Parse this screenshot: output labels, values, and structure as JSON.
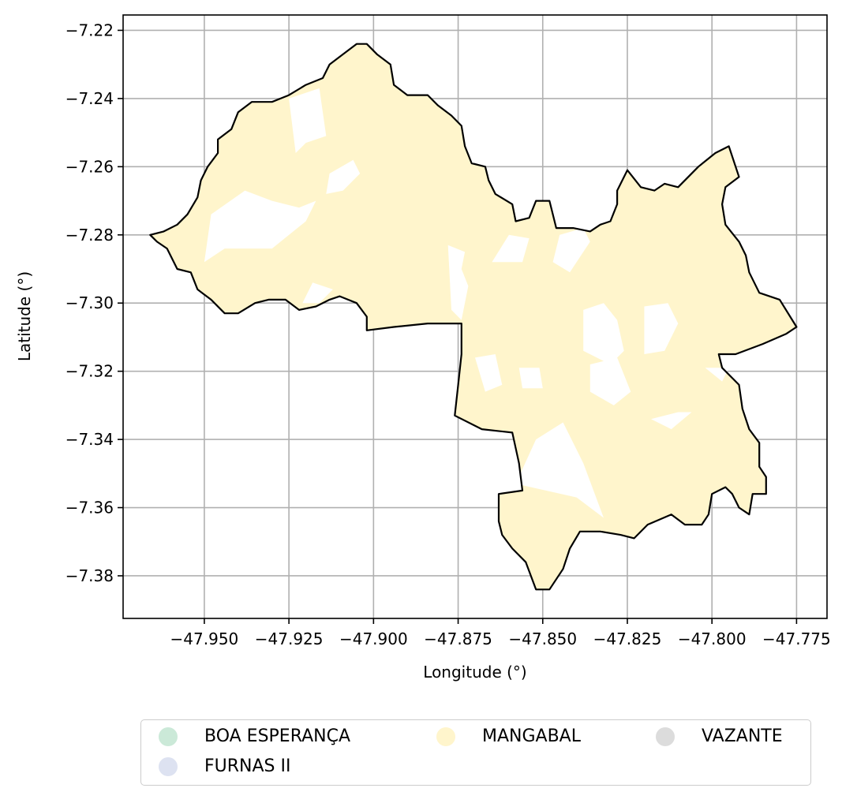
{
  "chart_data": {
    "type": "choropleth-map",
    "xlabel": "Longitude (°)",
    "ylabel": "Latitude (°)",
    "xlim": [
      -47.974,
      -47.766
    ],
    "ylim": [
      -7.3925,
      -7.2155
    ],
    "grid": true,
    "x_ticks": [
      -47.95,
      -47.925,
      -47.9,
      -47.875,
      -47.85,
      -47.825,
      -47.8,
      -47.775
    ],
    "x_tick_labels": [
      "−47.950",
      "−47.925",
      "−47.900",
      "−47.875",
      "−47.850",
      "−47.825",
      "−47.800",
      "−47.775"
    ],
    "y_ticks": [
      -7.22,
      -7.24,
      -7.26,
      -7.28,
      -7.3,
      -7.32,
      -7.34,
      -7.36,
      -7.38
    ],
    "y_tick_labels": [
      "−7.22",
      "−7.24",
      "−7.26",
      "−7.28",
      "−7.30",
      "−7.32",
      "−7.34",
      "−7.36",
      "−7.38"
    ],
    "legend_placement": "below",
    "legend": [
      {
        "label": "BOA ESPERANÇA",
        "color": "#cbe9d8"
      },
      {
        "label": "FURNAS II",
        "color": "#dde2f1"
      },
      {
        "label": "MANGABAL",
        "color": "#fff5cc"
      },
      {
        "label": "VAZANTE",
        "color": "#dcdcdc"
      }
    ],
    "fill_color": "#fff5cc",
    "boundary_color": "#000000",
    "boundary": [
      [
        -47.966,
        -7.28
      ],
      [
        -47.962,
        -7.279
      ],
      [
        -47.958,
        -7.277
      ],
      [
        -47.955,
        -7.274
      ],
      [
        -47.952,
        -7.269
      ],
      [
        -47.951,
        -7.264
      ],
      [
        -47.949,
        -7.26
      ],
      [
        -47.946,
        -7.256
      ],
      [
        -47.946,
        -7.252
      ],
      [
        -47.942,
        -7.249
      ],
      [
        -47.94,
        -7.244
      ],
      [
        -47.936,
        -7.241
      ],
      [
        -47.93,
        -7.241
      ],
      [
        -47.925,
        -7.239
      ],
      [
        -47.92,
        -7.236
      ],
      [
        -47.915,
        -7.234
      ],
      [
        -47.913,
        -7.23
      ],
      [
        -47.909,
        -7.227
      ],
      [
        -47.905,
        -7.224
      ],
      [
        -47.902,
        -7.224
      ],
      [
        -47.899,
        -7.227
      ],
      [
        -47.895,
        -7.23
      ],
      [
        -47.894,
        -7.236
      ],
      [
        -47.89,
        -7.239
      ],
      [
        -47.884,
        -7.239
      ],
      [
        -47.881,
        -7.242
      ],
      [
        -47.877,
        -7.245
      ],
      [
        -47.874,
        -7.248
      ],
      [
        -47.873,
        -7.254
      ],
      [
        -47.871,
        -7.259
      ],
      [
        -47.867,
        -7.26
      ],
      [
        -47.866,
        -7.264
      ],
      [
        -47.864,
        -7.268
      ],
      [
        -47.859,
        -7.271
      ],
      [
        -47.858,
        -7.276
      ],
      [
        -47.854,
        -7.275
      ],
      [
        -47.852,
        -7.27
      ],
      [
        -47.848,
        -7.27
      ],
      [
        -47.846,
        -7.278
      ],
      [
        -47.841,
        -7.278
      ],
      [
        -47.836,
        -7.279
      ],
      [
        -47.833,
        -7.277
      ],
      [
        -47.83,
        -7.276
      ],
      [
        -47.828,
        -7.271
      ],
      [
        -47.828,
        -7.267
      ],
      [
        -47.825,
        -7.261
      ],
      [
        -47.821,
        -7.266
      ],
      [
        -47.817,
        -7.267
      ],
      [
        -47.814,
        -7.265
      ],
      [
        -47.81,
        -7.266
      ],
      [
        -47.804,
        -7.26
      ],
      [
        -47.799,
        -7.256
      ],
      [
        -47.795,
        -7.254
      ],
      [
        -47.792,
        -7.263
      ],
      [
        -47.796,
        -7.266
      ],
      [
        -47.797,
        -7.271
      ],
      [
        -47.796,
        -7.277
      ],
      [
        -47.792,
        -7.282
      ],
      [
        -47.79,
        -7.286
      ],
      [
        -47.789,
        -7.291
      ],
      [
        -47.786,
        -7.297
      ],
      [
        -47.78,
        -7.299
      ],
      [
        -47.775,
        -7.307
      ],
      [
        -47.778,
        -7.309
      ],
      [
        -47.785,
        -7.312
      ],
      [
        -47.793,
        -7.315
      ],
      [
        -47.798,
        -7.315
      ],
      [
        -47.797,
        -7.319
      ],
      [
        -47.792,
        -7.324
      ],
      [
        -47.791,
        -7.331
      ],
      [
        -47.789,
        -7.337
      ],
      [
        -47.786,
        -7.341
      ],
      [
        -47.786,
        -7.348
      ],
      [
        -47.784,
        -7.351
      ],
      [
        -47.784,
        -7.356
      ],
      [
        -47.788,
        -7.356
      ],
      [
        -47.789,
        -7.362
      ],
      [
        -47.792,
        -7.36
      ],
      [
        -47.794,
        -7.356
      ],
      [
        -47.796,
        -7.354
      ],
      [
        -47.8,
        -7.356
      ],
      [
        -47.801,
        -7.362
      ],
      [
        -47.803,
        -7.365
      ],
      [
        -47.808,
        -7.365
      ],
      [
        -47.812,
        -7.362
      ],
      [
        -47.819,
        -7.365
      ],
      [
        -47.823,
        -7.369
      ],
      [
        -47.827,
        -7.368
      ],
      [
        -47.833,
        -7.367
      ],
      [
        -47.839,
        -7.367
      ],
      [
        -47.842,
        -7.372
      ],
      [
        -47.844,
        -7.378
      ],
      [
        -47.848,
        -7.384
      ],
      [
        -47.852,
        -7.384
      ],
      [
        -47.855,
        -7.376
      ],
      [
        -47.859,
        -7.372
      ],
      [
        -47.862,
        -7.368
      ],
      [
        -47.863,
        -7.364
      ],
      [
        -47.863,
        -7.356
      ],
      [
        -47.856,
        -7.355
      ],
      [
        -47.857,
        -7.347
      ],
      [
        -47.859,
        -7.338
      ],
      [
        -47.868,
        -7.337
      ],
      [
        -47.876,
        -7.333
      ],
      [
        -47.875,
        -7.324
      ],
      [
        -47.874,
        -7.315
      ],
      [
        -47.874,
        -7.306
      ],
      [
        -47.884,
        -7.306
      ],
      [
        -47.894,
        -7.307
      ],
      [
        -47.902,
        -7.308
      ],
      [
        -47.902,
        -7.304
      ],
      [
        -47.905,
        -7.3
      ],
      [
        -47.91,
        -7.298
      ],
      [
        -47.913,
        -7.299
      ],
      [
        -47.917,
        -7.301
      ],
      [
        -47.922,
        -7.302
      ],
      [
        -47.926,
        -7.299
      ],
      [
        -47.931,
        -7.299
      ],
      [
        -47.935,
        -7.3
      ],
      [
        -47.94,
        -7.303
      ],
      [
        -47.944,
        -7.303
      ],
      [
        -47.948,
        -7.299
      ],
      [
        -47.952,
        -7.296
      ],
      [
        -47.954,
        -7.291
      ],
      [
        -47.958,
        -7.29
      ],
      [
        -47.961,
        -7.284
      ],
      [
        -47.964,
        -7.282
      ],
      [
        -47.966,
        -7.28
      ]
    ],
    "unfilled_areas": [
      [
        [
          -47.925,
          -7.24
        ],
        [
          -47.916,
          -7.237
        ],
        [
          -47.914,
          -7.251
        ],
        [
          -47.92,
          -7.253
        ],
        [
          -47.923,
          -7.256
        ]
      ],
      [
        [
          -47.913,
          -7.262
        ],
        [
          -47.906,
          -7.258
        ],
        [
          -47.904,
          -7.262
        ],
        [
          -47.909,
          -7.267
        ],
        [
          -47.914,
          -7.268
        ]
      ],
      [
        [
          -47.948,
          -7.274
        ],
        [
          -47.938,
          -7.267
        ],
        [
          -47.93,
          -7.27
        ],
        [
          -47.922,
          -7.272
        ],
        [
          -47.917,
          -7.27
        ],
        [
          -47.92,
          -7.276
        ],
        [
          -47.93,
          -7.284
        ],
        [
          -47.944,
          -7.284
        ],
        [
          -47.95,
          -7.288
        ]
      ],
      [
        [
          -47.918,
          -7.294
        ],
        [
          -47.912,
          -7.296
        ],
        [
          -47.916,
          -7.3
        ],
        [
          -47.921,
          -7.3
        ]
      ],
      [
        [
          -47.878,
          -7.283
        ],
        [
          -47.873,
          -7.285
        ],
        [
          -47.874,
          -7.29
        ],
        [
          -47.872,
          -7.295
        ],
        [
          -47.874,
          -7.305
        ],
        [
          -47.877,
          -7.302
        ]
      ],
      [
        [
          -47.865,
          -7.288
        ],
        [
          -47.86,
          -7.28
        ],
        [
          -47.854,
          -7.281
        ],
        [
          -47.856,
          -7.288
        ]
      ],
      [
        [
          -47.847,
          -7.288
        ],
        [
          -47.845,
          -7.28
        ],
        [
          -47.838,
          -7.278
        ],
        [
          -47.836,
          -7.282
        ],
        [
          -47.842,
          -7.291
        ]
      ],
      [
        [
          -47.838,
          -7.302
        ],
        [
          -47.832,
          -7.3
        ],
        [
          -47.828,
          -7.305
        ],
        [
          -47.826,
          -7.314
        ],
        [
          -47.83,
          -7.318
        ],
        [
          -47.838,
          -7.314
        ]
      ],
      [
        [
          -47.82,
          -7.301
        ],
        [
          -47.813,
          -7.3
        ],
        [
          -47.81,
          -7.306
        ],
        [
          -47.814,
          -7.314
        ],
        [
          -47.82,
          -7.315
        ]
      ],
      [
        [
          -47.836,
          -7.318
        ],
        [
          -47.828,
          -7.316
        ],
        [
          -47.824,
          -7.326
        ],
        [
          -47.829,
          -7.33
        ],
        [
          -47.836,
          -7.326
        ]
      ],
      [
        [
          -47.81,
          -7.332
        ],
        [
          -47.806,
          -7.332
        ],
        [
          -47.812,
          -7.337
        ],
        [
          -47.818,
          -7.334
        ]
      ],
      [
        [
          -47.802,
          -7.319
        ],
        [
          -47.795,
          -7.319
        ],
        [
          -47.797,
          -7.323
        ]
      ],
      [
        [
          -47.852,
          -7.34
        ],
        [
          -47.844,
          -7.335
        ],
        [
          -47.838,
          -7.347
        ],
        [
          -47.832,
          -7.363
        ],
        [
          -47.84,
          -7.357
        ],
        [
          -47.858,
          -7.353
        ]
      ],
      [
        [
          -47.87,
          -7.316
        ],
        [
          -47.864,
          -7.315
        ],
        [
          -47.862,
          -7.324
        ],
        [
          -47.867,
          -7.326
        ]
      ],
      [
        [
          -47.857,
          -7.319
        ],
        [
          -47.851,
          -7.319
        ],
        [
          -47.85,
          -7.325
        ],
        [
          -47.856,
          -7.325
        ]
      ]
    ]
  }
}
